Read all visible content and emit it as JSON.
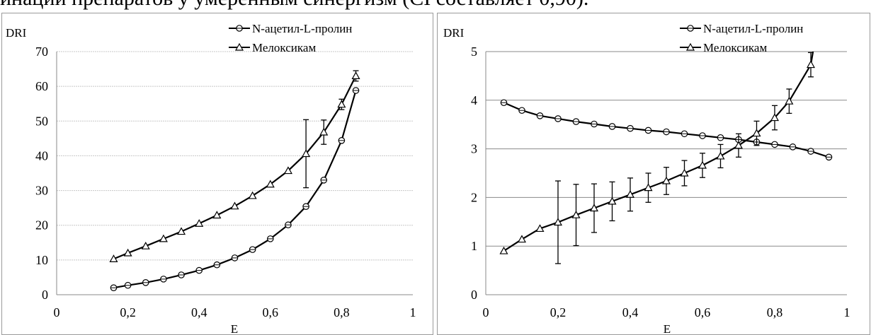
{
  "header_text": "инации препаратов у умеренным синергизм (CI составляет 0,90).",
  "chart_data": [
    {
      "type": "line",
      "ylabel": "DRI",
      "xlabel": "E",
      "xlim": [
        0,
        1
      ],
      "ylim": [
        0,
        70
      ],
      "x_ticks": [
        "0",
        "0,2",
        "0,4",
        "0,6",
        "0,8",
        "1"
      ],
      "y_ticks": [
        "0",
        "10",
        "20",
        "30",
        "40",
        "50",
        "60",
        "70"
      ],
      "grid": "horizontal",
      "legend_position": "top-right",
      "series": [
        {
          "name": "N-ацетил-L-пролин",
          "marker": "circle",
          "x": [
            0.16,
            0.2,
            0.25,
            0.3,
            0.35,
            0.4,
            0.45,
            0.5,
            0.55,
            0.6,
            0.65,
            0.7,
            0.75,
            0.8,
            0.84
          ],
          "y": [
            2.0,
            2.7,
            3.5,
            4.5,
            5.7,
            7.0,
            8.6,
            10.6,
            13.0,
            16.1,
            20.1,
            25.4,
            33.0,
            44.4,
            58.8
          ]
        },
        {
          "name": "Мелоксикам",
          "marker": "triangle",
          "x": [
            0.16,
            0.2,
            0.25,
            0.3,
            0.35,
            0.4,
            0.45,
            0.5,
            0.55,
            0.6,
            0.65,
            0.7,
            0.75,
            0.8,
            0.84
          ],
          "y": [
            10.3,
            12.0,
            14.0,
            16.1,
            18.2,
            20.5,
            22.9,
            25.5,
            28.5,
            31.8,
            35.7,
            40.6,
            46.8,
            54.8,
            63.0
          ],
          "error": [
            0,
            0,
            0,
            0,
            0,
            0,
            0,
            0,
            0,
            0,
            0,
            9.8,
            3.5,
            1.5,
            1.5
          ]
        }
      ]
    },
    {
      "type": "line",
      "ylabel": "DRI",
      "xlabel": "E",
      "xlim": [
        0,
        1
      ],
      "ylim": [
        0,
        5
      ],
      "x_ticks": [
        "0",
        "0,2",
        "0,4",
        "0,6",
        "0,8",
        "1"
      ],
      "y_ticks": [
        "0",
        "1",
        "2",
        "3",
        "4",
        "5"
      ],
      "grid": "horizontal",
      "legend_position": "top-right",
      "series": [
        {
          "name": "N-ацетил-L-пролин",
          "marker": "circle",
          "x": [
            0.05,
            0.1,
            0.15,
            0.2,
            0.25,
            0.3,
            0.35,
            0.4,
            0.45,
            0.5,
            0.55,
            0.6,
            0.65,
            0.7,
            0.75,
            0.8,
            0.85,
            0.9,
            0.95
          ],
          "y": [
            3.95,
            3.79,
            3.68,
            3.62,
            3.56,
            3.51,
            3.46,
            3.42,
            3.38,
            3.35,
            3.31,
            3.27,
            3.23,
            3.19,
            3.14,
            3.09,
            3.04,
            2.95,
            2.83
          ]
        },
        {
          "name": "Мелоксикам",
          "marker": "triangle",
          "x": [
            0.05,
            0.1,
            0.15,
            0.2,
            0.25,
            0.3,
            0.35,
            0.4,
            0.45,
            0.5,
            0.55,
            0.6,
            0.65,
            0.7,
            0.75,
            0.8,
            0.84,
            0.9
          ],
          "y": [
            0.9,
            1.14,
            1.36,
            1.49,
            1.64,
            1.78,
            1.92,
            2.06,
            2.2,
            2.34,
            2.5,
            2.66,
            2.85,
            3.07,
            3.32,
            3.64,
            3.98,
            4.73
          ],
          "error": [
            0,
            0,
            0,
            0.85,
            0.63,
            0.5,
            0.4,
            0.34,
            0.3,
            0.28,
            0.26,
            0.25,
            0.24,
            0.24,
            0.25,
            0.25,
            0.25,
            0.25
          ]
        }
      ]
    }
  ]
}
